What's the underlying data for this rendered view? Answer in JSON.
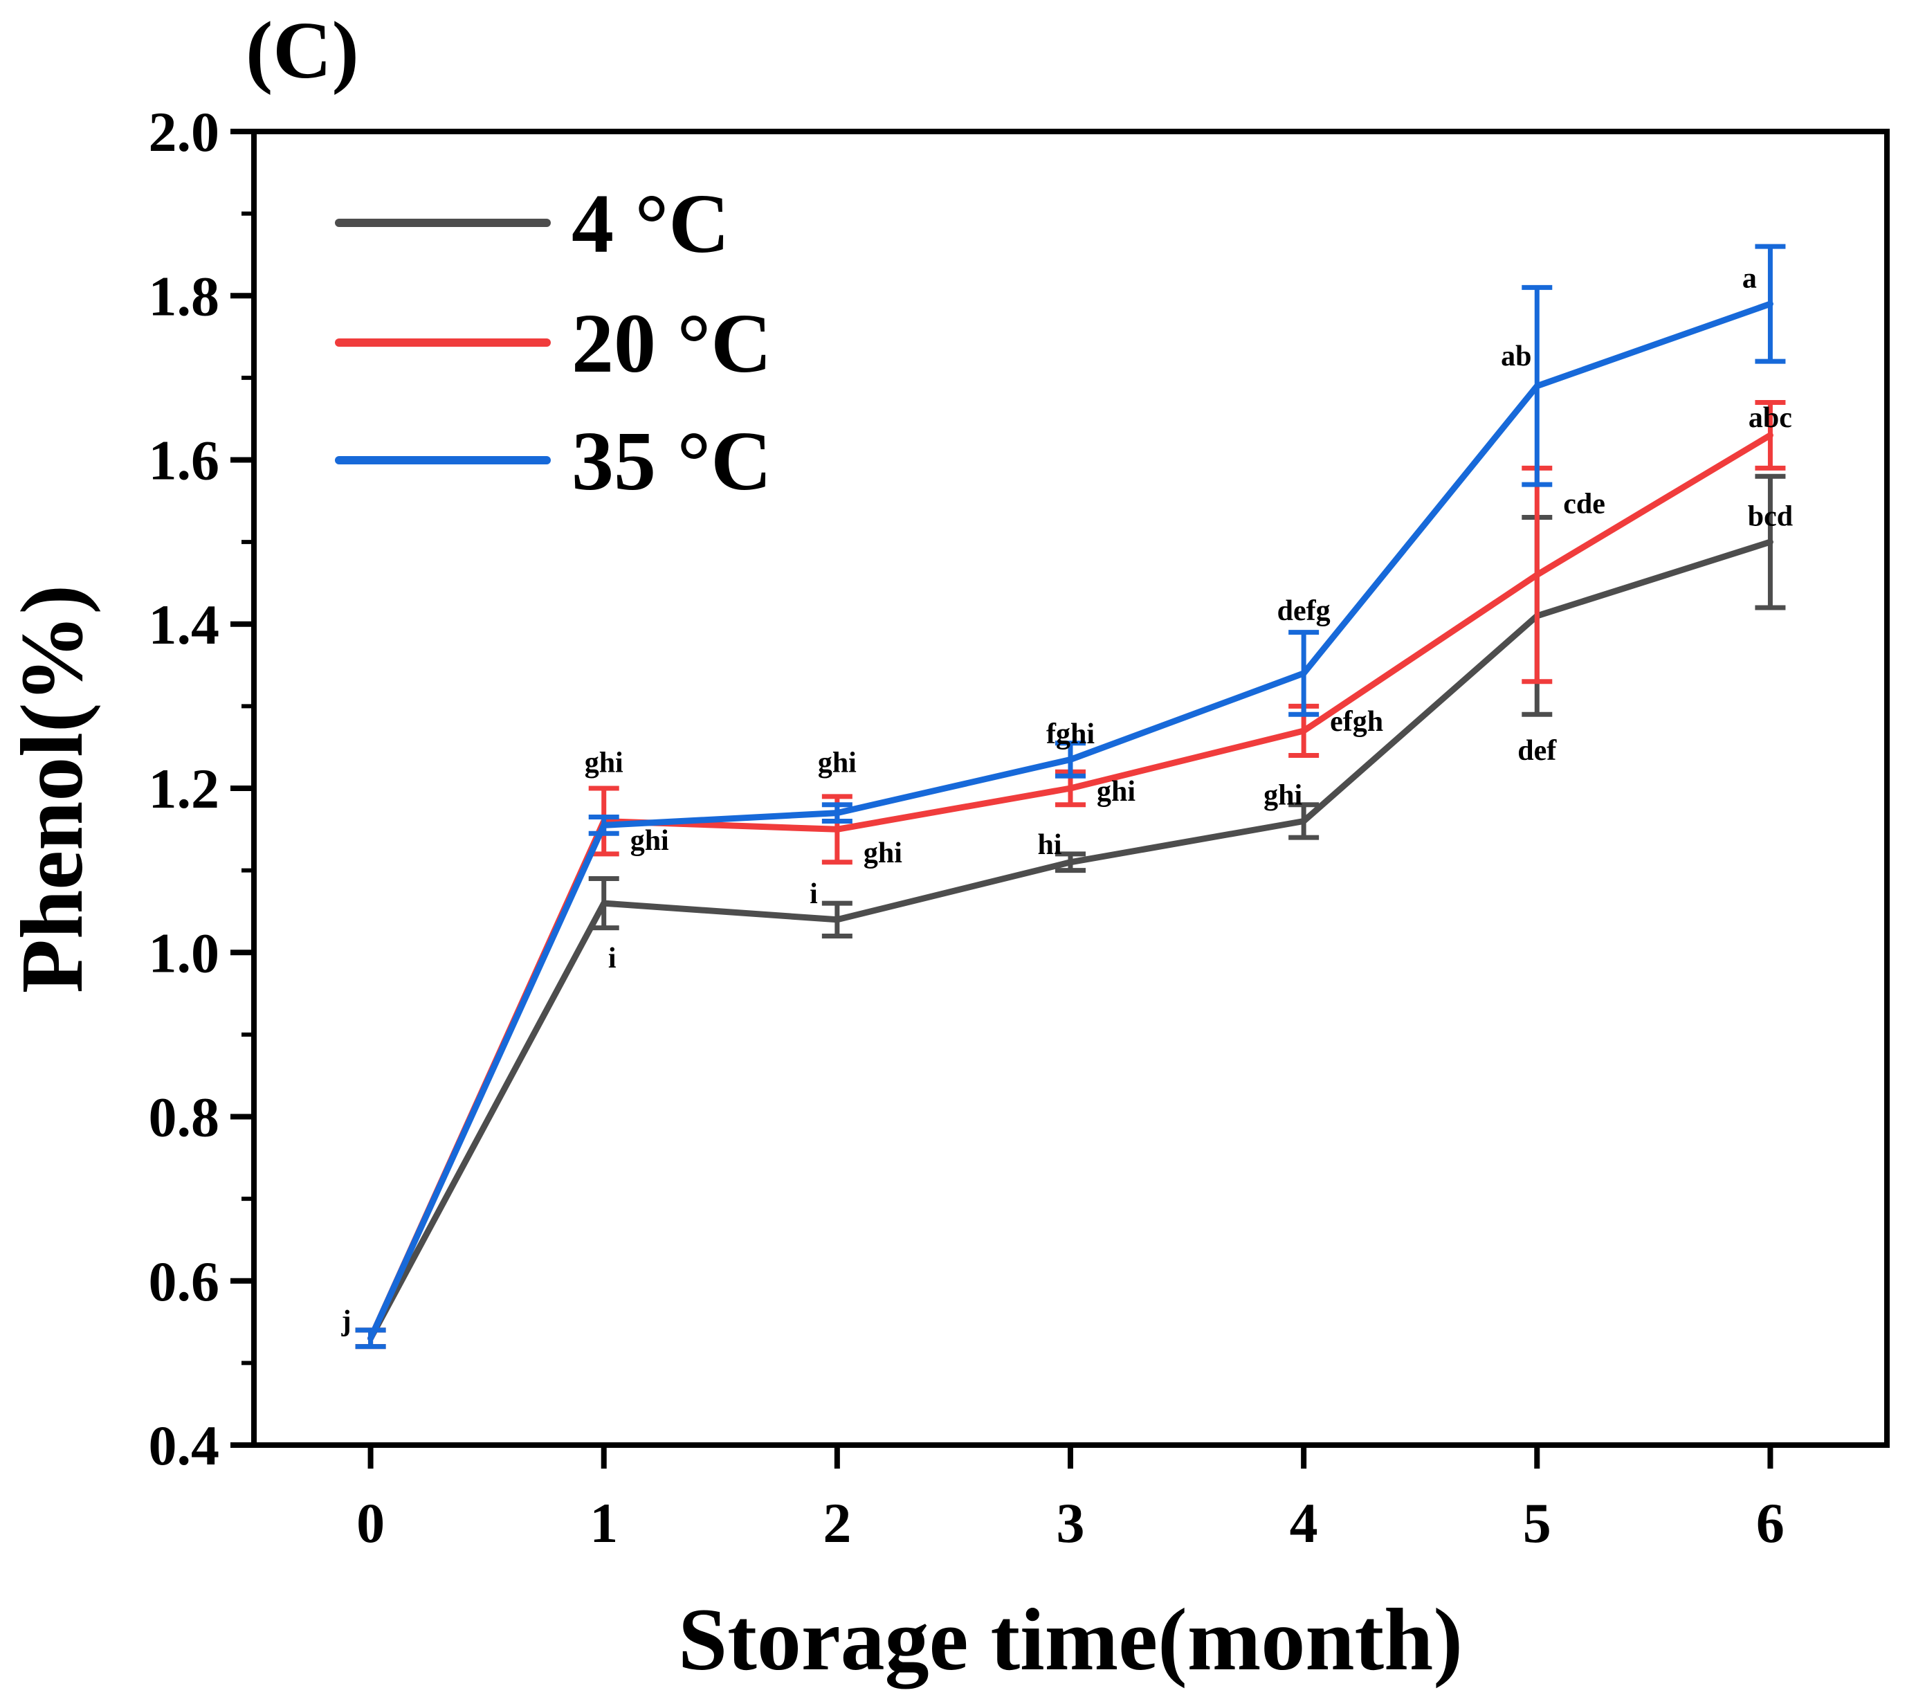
{
  "chart_data": {
    "type": "line",
    "panel_label": "(C)",
    "title": "",
    "xlabel": "Storage time(month)",
    "ylabel": "Phenol(%)",
    "x": [
      0,
      1,
      2,
      3,
      4,
      5,
      6
    ],
    "xlim": [
      -0.5,
      6.5
    ],
    "ylim": [
      0.4,
      2.0
    ],
    "x_ticks": [
      "0",
      "1",
      "2",
      "3",
      "4",
      "5",
      "6"
    ],
    "y_ticks": [
      "0.4",
      "0.6",
      "0.8",
      "1.0",
      "1.2",
      "1.4",
      "1.6",
      "1.8",
      "2.0"
    ],
    "grid": false,
    "legend_position": "top-left",
    "series": [
      {
        "name": "4 °C",
        "color": "#4d4d4d",
        "values": [
          0.53,
          1.06,
          1.04,
          1.11,
          1.16,
          1.41,
          1.5
        ],
        "errors": [
          0.01,
          0.03,
          0.02,
          0.01,
          0.02,
          0.12,
          0.08
        ],
        "letters": [
          "j",
          "i",
          "i",
          "hi",
          "ghi",
          "def",
          "bcd"
        ]
      },
      {
        "name": "20 °C",
        "color": "#f03c3c",
        "values": [
          0.53,
          1.16,
          1.15,
          1.2,
          1.27,
          1.46,
          1.63
        ],
        "errors": [
          0.01,
          0.04,
          0.04,
          0.02,
          0.03,
          0.13,
          0.04
        ],
        "letters": [
          "j",
          "ghi",
          "ghi",
          "ghi",
          "efgh",
          "cde",
          "abc"
        ]
      },
      {
        "name": "35 °C",
        "color": "#1769d9",
        "values": [
          0.53,
          1.155,
          1.17,
          1.235,
          1.34,
          1.69,
          1.79
        ],
        "errors": [
          0.01,
          0.01,
          0.01,
          0.02,
          0.05,
          0.12,
          0.07
        ],
        "letters": [
          "j",
          "ghi",
          "ghi",
          "fghi",
          "defg",
          "ab",
          "a"
        ]
      }
    ],
    "letter_labels": [
      {
        "text": "j",
        "x": 0,
        "y": 0.54,
        "anchor": "left"
      },
      {
        "text": "i",
        "x": 1,
        "y": 0.99,
        "anchor": "right-below"
      },
      {
        "text": "ghi",
        "x": 1,
        "y": 1.22,
        "anchor": "above"
      },
      {
        "text": "ghi",
        "x": 1,
        "y": 1.125,
        "anchor": "right"
      },
      {
        "text": "i",
        "x": 2,
        "y": 1.06,
        "anchor": "left"
      },
      {
        "text": "ghi",
        "x": 2,
        "y": 1.22,
        "anchor": "above"
      },
      {
        "text": "ghi",
        "x": 2,
        "y": 1.11,
        "anchor": "right"
      },
      {
        "text": "hi",
        "x": 3,
        "y": 1.12,
        "anchor": "above-left"
      },
      {
        "text": "fghi",
        "x": 3,
        "y": 1.255,
        "anchor": "above"
      },
      {
        "text": "ghi",
        "x": 3,
        "y": 1.185,
        "anchor": "right"
      },
      {
        "text": "ghi",
        "x": 4,
        "y": 1.18,
        "anchor": "above-left"
      },
      {
        "text": "efgh",
        "x": 4,
        "y": 1.27,
        "anchor": "right"
      },
      {
        "text": "defg",
        "x": 4,
        "y": 1.405,
        "anchor": "above"
      },
      {
        "text": "def",
        "x": 5,
        "y": 1.26,
        "anchor": "below"
      },
      {
        "text": "cde",
        "x": 5,
        "y": 1.535,
        "anchor": "right"
      },
      {
        "text": "ab",
        "x": 5,
        "y": 1.715,
        "anchor": "above-left"
      },
      {
        "text": "bcd",
        "x": 6,
        "y": 1.52,
        "anchor": "above"
      },
      {
        "text": "abc",
        "x": 6,
        "y": 1.64,
        "anchor": "above"
      },
      {
        "text": "a",
        "x": 6,
        "y": 1.81,
        "anchor": "above-left"
      }
    ]
  }
}
